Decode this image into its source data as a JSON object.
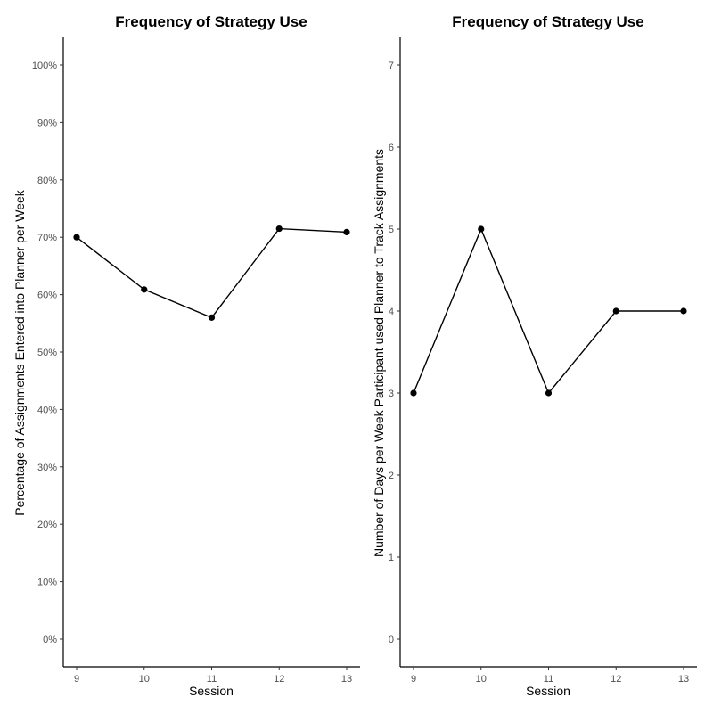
{
  "chart_data": [
    {
      "type": "line",
      "title": "Frequency of Strategy Use",
      "xlabel": "Session",
      "ylabel": "Percentage of Assignments Entered into Planner per Week",
      "x": [
        9,
        10,
        11,
        12,
        13
      ],
      "x_tick_labels": [
        "9",
        "10",
        "11",
        "12",
        "13"
      ],
      "y_ticks": [
        0,
        10,
        20,
        30,
        40,
        50,
        60,
        70,
        80,
        90,
        100
      ],
      "y_tick_labels": [
        "0%",
        "10%",
        "20%",
        "30%",
        "40%",
        "50%",
        "60%",
        "70%",
        "80%",
        "90%",
        "100%"
      ],
      "series": [
        {
          "values": [
            70,
            60.9,
            56,
            71.5,
            70.9
          ]
        }
      ],
      "xlim": [
        9,
        13
      ],
      "ylim": [
        0,
        100
      ],
      "grid": false
    },
    {
      "type": "line",
      "title": "Frequency of Strategy Use",
      "xlabel": "Session",
      "ylabel": "Number of Days per Week Participant used Planner to Track Assignments",
      "x": [
        9,
        10,
        11,
        12,
        13
      ],
      "x_tick_labels": [
        "9",
        "10",
        "11",
        "12",
        "13"
      ],
      "y_ticks": [
        0,
        1,
        2,
        3,
        4,
        5,
        6,
        7
      ],
      "y_tick_labels": [
        "0",
        "1",
        "2",
        "3",
        "4",
        "5",
        "6",
        "7"
      ],
      "series": [
        {
          "values": [
            3,
            5,
            3,
            4,
            4
          ]
        }
      ],
      "xlim": [
        9,
        13
      ],
      "ylim": [
        0,
        7
      ],
      "grid": false
    }
  ]
}
